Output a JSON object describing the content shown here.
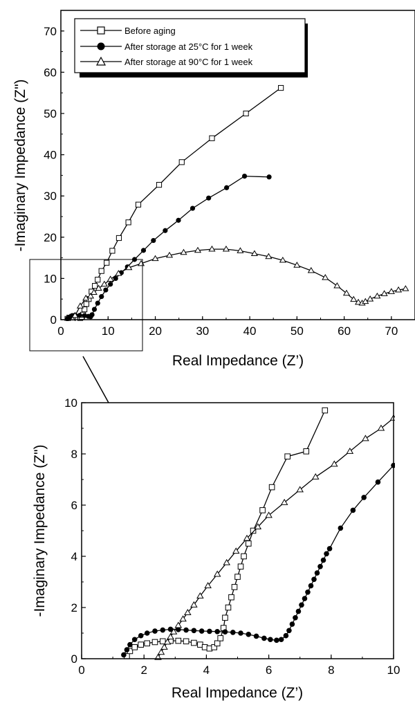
{
  "legend": {
    "items": [
      {
        "label": "Before aging",
        "marker": "open-square"
      },
      {
        "label": "After storage at 25°C for 1 week",
        "marker": "filled-circle"
      },
      {
        "label": "After storage at 90°C for 1 week",
        "marker": "open-triangle"
      }
    ]
  },
  "chart_data": [
    {
      "type": "scatter",
      "title": "",
      "xlabel": "Real Impedance (Z’)",
      "ylabel": "-Imaginary Impedance (Z\")",
      "xlim": [
        0,
        75
      ],
      "ylim": [
        0,
        75
      ],
      "xticks": [
        "0",
        "10",
        "20",
        "30",
        "40",
        "50",
        "60",
        "70"
      ],
      "yticks": [
        "0",
        "10",
        "20",
        "30",
        "40",
        "50",
        "60",
        "70"
      ],
      "grid": false,
      "legend_position": "top-left",
      "series": [
        {
          "name": "Before aging",
          "marker": "open-square",
          "connected": true,
          "points": [
            [
              1.4,
              0.2
            ],
            [
              1.8,
              0.5
            ],
            [
              2.4,
              0.7
            ],
            [
              3,
              0.7
            ],
            [
              3.6,
              0.6
            ],
            [
              4.1,
              0.4
            ],
            [
              4.4,
              0.7
            ],
            [
              4.7,
              1.2
            ],
            [
              5,
              2.5
            ],
            [
              5.4,
              3.8
            ],
            [
              5.9,
              5
            ],
            [
              6.5,
              6.8
            ],
            [
              7.2,
              8.2
            ],
            [
              7.8,
              9.7
            ],
            [
              8.6,
              11.8
            ],
            [
              9.7,
              13.8
            ],
            [
              10.9,
              16.7
            ],
            [
              12.3,
              19.8
            ],
            [
              14.3,
              23.6
            ],
            [
              16.4,
              27.9
            ],
            [
              20.8,
              32.7
            ],
            [
              25.6,
              38.2
            ],
            [
              32,
              44
            ],
            [
              39.2,
              50
            ],
            [
              46.6,
              56.2
            ]
          ]
        },
        {
          "name": "After storage at 25°C for 1 week",
          "marker": "filled-circle",
          "connected": true,
          "points": [
            [
              1.4,
              0.2
            ],
            [
              1.8,
              0.6
            ],
            [
              2.4,
              1
            ],
            [
              3,
              1.1
            ],
            [
              4,
              1.05
            ],
            [
              5,
              1
            ],
            [
              5.8,
              0.8
            ],
            [
              6.3,
              0.7
            ],
            [
              6.6,
              1.2
            ],
            [
              7.1,
              2.5
            ],
            [
              7.8,
              4
            ],
            [
              8.6,
              5.6
            ],
            [
              9.5,
              7.2
            ],
            [
              10.5,
              8.6
            ],
            [
              11.6,
              10
            ],
            [
              12.8,
              11.4
            ],
            [
              14.1,
              12.8
            ],
            [
              15.6,
              14.6
            ],
            [
              17.5,
              16.8
            ],
            [
              19.6,
              19.2
            ],
            [
              22.1,
              21.6
            ],
            [
              24.9,
              24.1
            ],
            [
              27.9,
              27
            ],
            [
              31.3,
              29.5
            ],
            [
              35.1,
              32
            ],
            [
              38.9,
              34.8
            ],
            [
              44.1,
              34.6
            ]
          ]
        },
        {
          "name": "After storage at 90°C for 1 week",
          "marker": "open-triangle",
          "connected": true,
          "points": [
            [
              2.5,
              0.1
            ],
            [
              3,
              1
            ],
            [
              4.1,
              3.3
            ],
            [
              5.3,
              5.2
            ],
            [
              6.3,
              5.7
            ],
            [
              7,
              6.6
            ],
            [
              8,
              7.6
            ],
            [
              9.2,
              8.6
            ],
            [
              10.5,
              9.8
            ],
            [
              12.2,
              11.2
            ],
            [
              14.4,
              12.6
            ],
            [
              17,
              13.6
            ],
            [
              20,
              14.8
            ],
            [
              23,
              15.6
            ],
            [
              26,
              16.3
            ],
            [
              29,
              16.8
            ],
            [
              32,
              17.1
            ],
            [
              35,
              17.1
            ],
            [
              38,
              16.7
            ],
            [
              41,
              16
            ],
            [
              44,
              15.3
            ],
            [
              47,
              14.4
            ],
            [
              50,
              13.2
            ],
            [
              53,
              11.9
            ],
            [
              56,
              10.2
            ],
            [
              58.5,
              8.2
            ],
            [
              60.5,
              6.4
            ],
            [
              62,
              4.9
            ],
            [
              63,
              4.2
            ],
            [
              63.8,
              4
            ],
            [
              64.5,
              4.4
            ],
            [
              65.5,
              5
            ],
            [
              67,
              5.7
            ],
            [
              68.5,
              6.3
            ],
            [
              70,
              6.8
            ],
            [
              71.5,
              7.2
            ],
            [
              73,
              7.5
            ]
          ]
        }
      ]
    },
    {
      "type": "scatter",
      "title": "",
      "xlabel": "Real Impedance (Z’)",
      "ylabel": "-Imaginary Impedance (Z\")",
      "xlim": [
        0,
        10
      ],
      "ylim": [
        0,
        10
      ],
      "xticks": [
        "0",
        "2",
        "4",
        "6",
        "8",
        "10"
      ],
      "yticks": [
        "0",
        "2",
        "4",
        "6",
        "8",
        "10"
      ],
      "grid": false,
      "legend_position": "none",
      "series": [
        {
          "name": "Before aging",
          "marker": "open-square",
          "connected": true,
          "points": [
            [
              1.45,
              0.1
            ],
            [
              1.55,
              0.3
            ],
            [
              1.7,
              0.45
            ],
            [
              1.9,
              0.55
            ],
            [
              2.1,
              0.6
            ],
            [
              2.35,
              0.65
            ],
            [
              2.6,
              0.68
            ],
            [
              2.85,
              0.7
            ],
            [
              3.1,
              0.7
            ],
            [
              3.35,
              0.68
            ],
            [
              3.6,
              0.62
            ],
            [
              3.8,
              0.55
            ],
            [
              3.95,
              0.45
            ],
            [
              4.1,
              0.4
            ],
            [
              4.25,
              0.45
            ],
            [
              4.35,
              0.6
            ],
            [
              4.45,
              0.8
            ],
            [
              4.55,
              1.2
            ],
            [
              4.6,
              1.6
            ],
            [
              4.7,
              2
            ],
            [
              4.8,
              2.4
            ],
            [
              4.9,
              2.8
            ],
            [
              5.0,
              3.2
            ],
            [
              5.1,
              3.6
            ],
            [
              5.2,
              4
            ],
            [
              5.35,
              4.5
            ],
            [
              5.5,
              5
            ],
            [
              5.8,
              5.8
            ],
            [
              6.1,
              6.7
            ],
            [
              6.6,
              7.9
            ],
            [
              7.2,
              8.1
            ],
            [
              7.8,
              9.7
            ]
          ]
        },
        {
          "name": "After storage at 25°C for 1 week",
          "marker": "filled-circle",
          "connected": true,
          "points": [
            [
              1.35,
              0.15
            ],
            [
              1.45,
              0.35
            ],
            [
              1.55,
              0.55
            ],
            [
              1.7,
              0.75
            ],
            [
              1.9,
              0.9
            ],
            [
              2.1,
              1.0
            ],
            [
              2.35,
              1.08
            ],
            [
              2.6,
              1.12
            ],
            [
              2.85,
              1.15
            ],
            [
              3.1,
              1.14
            ],
            [
              3.35,
              1.12
            ],
            [
              3.6,
              1.1
            ],
            [
              3.85,
              1.08
            ],
            [
              4.1,
              1.07
            ],
            [
              4.35,
              1.06
            ],
            [
              4.6,
              1.05
            ],
            [
              4.85,
              1.03
            ],
            [
              5.1,
              1.0
            ],
            [
              5.35,
              0.95
            ],
            [
              5.6,
              0.88
            ],
            [
              5.85,
              0.8
            ],
            [
              6.05,
              0.75
            ],
            [
              6.25,
              0.72
            ],
            [
              6.4,
              0.75
            ],
            [
              6.55,
              0.9
            ],
            [
              6.65,
              1.1
            ],
            [
              6.75,
              1.35
            ],
            [
              6.85,
              1.6
            ],
            [
              6.95,
              1.85
            ],
            [
              7.05,
              2.1
            ],
            [
              7.15,
              2.35
            ],
            [
              7.25,
              2.6
            ],
            [
              7.35,
              2.85
            ],
            [
              7.45,
              3.1
            ],
            [
              7.55,
              3.35
            ],
            [
              7.65,
              3.6
            ],
            [
              7.75,
              3.85
            ],
            [
              7.85,
              4.1
            ],
            [
              7.95,
              4.3
            ],
            [
              8.3,
              5.1
            ],
            [
              8.7,
              5.8
            ],
            [
              9.05,
              6.3
            ],
            [
              9.5,
              6.9
            ],
            [
              10,
              7.55
            ]
          ]
        },
        {
          "name": "After storage at 90°C for 1 week",
          "marker": "open-triangle",
          "connected": true,
          "points": [
            [
              2.45,
              0.05
            ],
            [
              2.55,
              0.25
            ],
            [
              2.65,
              0.45
            ],
            [
              2.75,
              0.65
            ],
            [
              2.85,
              0.85
            ],
            [
              2.95,
              1.05
            ],
            [
              3.1,
              1.3
            ],
            [
              3.25,
              1.55
            ],
            [
              3.4,
              1.8
            ],
            [
              3.6,
              2.1
            ],
            [
              3.8,
              2.45
            ],
            [
              4.05,
              2.85
            ],
            [
              4.35,
              3.3
            ],
            [
              4.65,
              3.75
            ],
            [
              4.95,
              4.2
            ],
            [
              5.3,
              4.7
            ],
            [
              5.65,
              5.15
            ],
            [
              6.0,
              5.6
            ],
            [
              6.5,
              6.1
            ],
            [
              7.0,
              6.6
            ],
            [
              7.5,
              7.1
            ],
            [
              8.1,
              7.6
            ],
            [
              8.6,
              8.1
            ],
            [
              9.1,
              8.6
            ],
            [
              9.6,
              9.0
            ],
            [
              10,
              9.4
            ]
          ]
        }
      ]
    }
  ]
}
